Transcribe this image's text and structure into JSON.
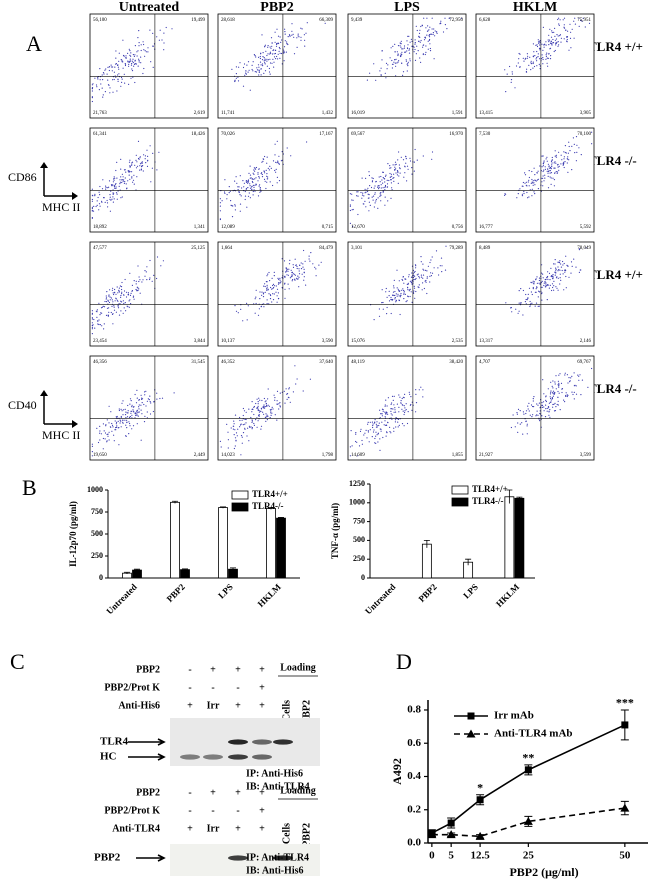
{
  "panel_a": {
    "letter": "A",
    "columns": [
      "Untreated",
      "PBP2",
      "LPS",
      "HKLM"
    ],
    "row_labels": [
      "TLR4 +/+",
      "TLR4 -/-",
      "TLR4 +/+",
      "TLR4 -/-"
    ],
    "axis_labels": [
      {
        "y": "CD86",
        "x": "MHC II"
      },
      {
        "y": "CD40",
        "x": "MHC II"
      }
    ],
    "plots": [
      [
        [
          "56,100",
          "19,499",
          "21,763",
          "2,619"
        ],
        [
          "28,618",
          "66,309",
          "11,741",
          "1,432"
        ],
        [
          "9,439",
          "72,950",
          "16,019",
          "1,591"
        ],
        [
          "6,628",
          "75,951",
          "13,415",
          "3,905"
        ]
      ],
      [
        [
          "61,341",
          "18,426",
          "18,892",
          "1,341"
        ],
        [
          "70,026",
          "17,167",
          "12,089",
          "0,715"
        ],
        [
          "69,567",
          "16,970",
          "12,670",
          "0,756"
        ],
        [
          "7,530",
          "70,100",
          "16,777",
          "5,592"
        ]
      ],
      [
        [
          "47,577",
          "25,125",
          "23,454",
          "3,844"
        ],
        [
          "1,664",
          "84,479",
          "10,137",
          "3,590"
        ],
        [
          "3,101",
          "79,289",
          "15,076",
          "2,535"
        ],
        [
          "8,489",
          "78,049",
          "13,317",
          "2,146"
        ]
      ],
      [
        [
          "46,356",
          "31,545",
          "19,650",
          "2,449"
        ],
        [
          "46,352",
          "37,640",
          "14,023",
          "1,798"
        ],
        [
          "48,119",
          "38,420",
          "14,609",
          "1,855"
        ],
        [
          "4,707",
          "69,767",
          "21,927",
          "3,599"
        ]
      ]
    ]
  },
  "panel_b": {
    "letter": "B"
  },
  "chart_data": [
    {
      "type": "bar",
      "ylabel": "IL-12p70 (pg/ml)",
      "categories": [
        "Untreated",
        "PBP2",
        "LPS",
        "HKLM"
      ],
      "series": [
        {
          "name": "TLR4+/+",
          "color": "#ffffff",
          "values": [
            55,
            860,
            800,
            790
          ],
          "errors": [
            10,
            12,
            8,
            10
          ]
        },
        {
          "name": "TLR4-/-",
          "color": "#000000",
          "values": [
            90,
            95,
            100,
            680
          ],
          "errors": [
            10,
            8,
            15,
            8
          ]
        }
      ],
      "ylim": [
        0,
        1000
      ],
      "yticks": [
        0,
        250,
        500,
        750,
        1000
      ]
    },
    {
      "type": "bar",
      "ylabel": "TNF-α (pg/ml)",
      "categories": [
        "Untreated",
        "PBP2",
        "LPS",
        "HKLM"
      ],
      "series": [
        {
          "name": "TLR4+/+",
          "color": "#ffffff",
          "values": [
            0,
            450,
            210,
            1080
          ],
          "errors": [
            0,
            50,
            40,
            90
          ]
        },
        {
          "name": "TLR4-/-",
          "color": "#000000",
          "values": [
            0,
            0,
            0,
            1060
          ],
          "errors": [
            0,
            0,
            0,
            15
          ]
        }
      ],
      "ylim": [
        0,
        1250
      ],
      "yticks": [
        0,
        250,
        500,
        750,
        1000,
        1250
      ]
    },
    {
      "type": "line",
      "panel_letter": "D",
      "xlabel": "PBP2 (μg/ml)",
      "ylabel": "A492",
      "x": [
        0,
        5,
        12.5,
        25,
        50
      ],
      "series": [
        {
          "name": "Irr mAb",
          "color": "#000000",
          "line_style": "solid",
          "marker": "square",
          "values": [
            0.06,
            0.12,
            0.26,
            0.44,
            0.71
          ],
          "errors": [
            0.02,
            0.03,
            0.03,
            0.03,
            0.09
          ]
        },
        {
          "name": "Anti-TLR4 mAb",
          "color": "#000000",
          "line_style": "dashed",
          "marker": "triangle",
          "values": [
            0.05,
            0.05,
            0.04,
            0.13,
            0.21
          ],
          "errors": [
            0.01,
            0.01,
            0.01,
            0.03,
            0.04
          ]
        }
      ],
      "annotations": [
        {
          "text": "*",
          "x": 12.5
        },
        {
          "text": "**",
          "x": 25
        },
        {
          "text": "***",
          "x": 50
        }
      ],
      "xlim": [
        -1,
        56
      ],
      "xticks": [
        0,
        5,
        12.5,
        25,
        50
      ],
      "ylim": [
        0,
        0.86
      ],
      "yticks": [
        {
          "value": 0,
          "label": "0.0"
        },
        0.2,
        0.4,
        0.6,
        0.8
      ]
    }
  ],
  "panel_c": {
    "letter": "C",
    "blocks": [
      {
        "conditions": [
          {
            "label": "PBP2",
            "cells": [
              "-",
              "+",
              "+",
              "+"
            ]
          },
          {
            "label": "PBP2/Prot K",
            "cells": [
              "-",
              "-",
              "-",
              "+"
            ]
          },
          {
            "label": "Anti-His6",
            "cells": [
              "+",
              "Irr",
              "+",
              "+"
            ]
          }
        ],
        "loading": "Loading",
        "loading_lanes": [
          "Cells",
          "PBP2"
        ],
        "bands": [
          "TLR4",
          "HC"
        ],
        "ip": "IP: Anti-His6",
        "ib": "IB: Anti-TLR4"
      },
      {
        "conditions": [
          {
            "label": "PBP2",
            "cells": [
              "-",
              "+",
              "+",
              "+"
            ]
          },
          {
            "label": "PBP2/Prot K",
            "cells": [
              "-",
              "-",
              "-",
              "+"
            ]
          },
          {
            "label": "Anti-TLR4",
            "cells": [
              "+",
              "Irr",
              "+",
              "+"
            ]
          }
        ],
        "loading": "Loading",
        "loading_lanes": [
          "Cells",
          "PBP2"
        ],
        "bands": [
          "PBP2"
        ],
        "ip": "IP: Anti-TLR4",
        "ib": "IB: Anti-His6"
      }
    ]
  }
}
